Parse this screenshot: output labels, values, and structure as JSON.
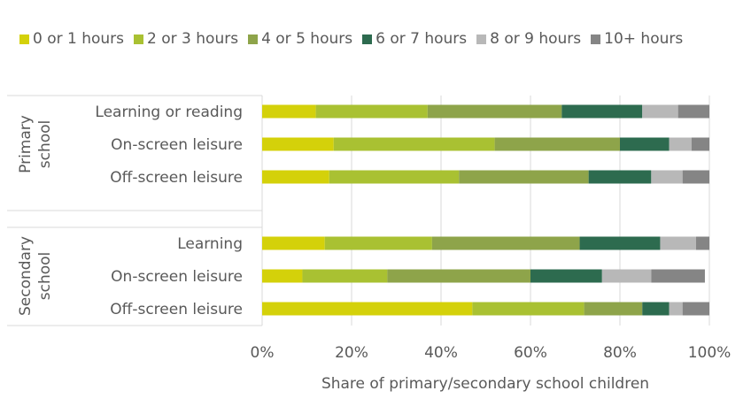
{
  "chart_data": {
    "type": "bar",
    "orientation": "horizontal",
    "stacked": true,
    "title": "",
    "xlabel": "Share of primary/secondary school children",
    "ylabel": "",
    "xlim": [
      0,
      100
    ],
    "x_ticks": [
      "0%",
      "20%",
      "40%",
      "60%",
      "80%",
      "100%"
    ],
    "legend_position": "top",
    "grid": "vertical",
    "groups": [
      {
        "name": "Primary school",
        "label_lines": [
          "Primary",
          "school"
        ],
        "categories": [
          "Learning or reading",
          "On-screen leisure",
          "Off-screen leisure"
        ]
      },
      {
        "name": "Secondary school",
        "label_lines": [
          "Secondary",
          "school"
        ],
        "categories": [
          "Learning",
          "On-screen leisure",
          "Off-screen leisure"
        ]
      }
    ],
    "series": [
      {
        "name": "0 or 1 hours",
        "color": "#d4d10a",
        "values": [
          [
            12,
            16,
            15
          ],
          [
            14,
            9,
            47
          ]
        ]
      },
      {
        "name": "2 or 3 hours",
        "color": "#a9c132",
        "values": [
          [
            25,
            36,
            29
          ],
          [
            24,
            19,
            25
          ]
        ]
      },
      {
        "name": "4 or 5 hours",
        "color": "#8ea44a",
        "values": [
          [
            30,
            28,
            29
          ],
          [
            33,
            32,
            13
          ]
        ]
      },
      {
        "name": "6 or 7 hours",
        "color": "#2d6b4f",
        "values": [
          [
            18,
            11,
            14
          ],
          [
            18,
            16,
            6
          ]
        ]
      },
      {
        "name": "8 or 9 hours",
        "color": "#b8b8b8",
        "values": [
          [
            8,
            5,
            7
          ],
          [
            8,
            11,
            3
          ]
        ]
      },
      {
        "name": "10+ hours",
        "color": "#858585",
        "values": [
          [
            7,
            4,
            6
          ],
          [
            3,
            12,
            6
          ]
        ]
      }
    ]
  }
}
